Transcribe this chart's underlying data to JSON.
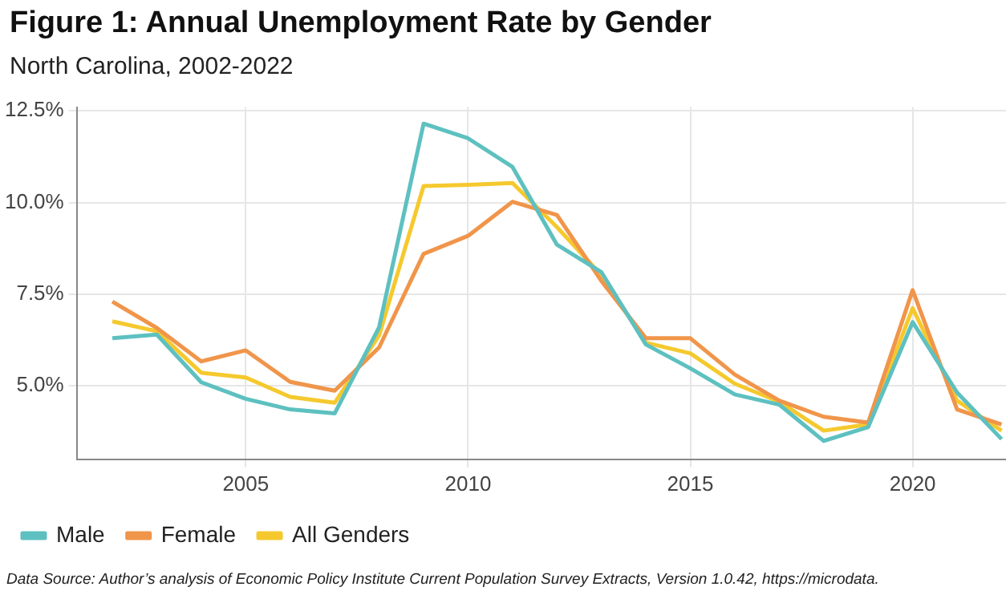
{
  "chart_data": {
    "type": "line",
    "title": "Figure 1: Annual Unemployment Rate by Gender",
    "subtitle": "North Carolina, 2002-2022",
    "x": [
      2002,
      2003,
      2004,
      2005,
      2006,
      2007,
      2008,
      2009,
      2010,
      2011,
      2012,
      2013,
      2014,
      2015,
      2016,
      2017,
      2018,
      2019,
      2020,
      2021,
      2022
    ],
    "series": [
      {
        "name": "Male",
        "color": "#5ec0c0",
        "values": [
          6.3,
          6.4,
          5.1,
          4.65,
          4.36,
          4.25,
          6.6,
          12.15,
          11.75,
          10.97,
          8.85,
          8.1,
          6.13,
          5.48,
          4.77,
          4.49,
          3.5,
          3.88,
          6.74,
          4.82,
          3.55
        ]
      },
      {
        "name": "Female",
        "color": "#f0954a",
        "values": [
          7.3,
          6.58,
          5.67,
          5.97,
          5.11,
          4.87,
          6.05,
          8.6,
          9.09,
          10.02,
          9.66,
          7.86,
          6.3,
          6.3,
          5.31,
          4.6,
          4.16,
          4.0,
          7.61,
          4.36,
          3.95
        ]
      },
      {
        "name": "All Genders",
        "color": "#f5c92e",
        "values": [
          6.76,
          6.49,
          5.36,
          5.23,
          4.7,
          4.54,
          6.38,
          10.45,
          10.48,
          10.53,
          9.33,
          8.02,
          6.18,
          5.89,
          5.06,
          4.57,
          3.78,
          3.95,
          7.12,
          4.6,
          3.78
        ]
      }
    ],
    "xlim": [
      2001.2,
      2022.1
    ],
    "xticks": [
      2005,
      2010,
      2015,
      2020
    ],
    "ylim": [
      3,
      12.6
    ],
    "yticks": [
      {
        "value": 5,
        "label": "5.0%"
      },
      {
        "value": 7.5,
        "label": "7.5%"
      },
      {
        "value": 10,
        "label": "10.0%"
      },
      {
        "value": 12.5,
        "label": "12.5%"
      }
    ],
    "grid": true,
    "legend": "bottom",
    "marker": "none",
    "line_style": "solid",
    "annotations": [
      "Data Source: Author’s analysis of Economic Policy Institute Current Population Survey Extracts, Version 1.0.42, https://microdata."
    ]
  }
}
